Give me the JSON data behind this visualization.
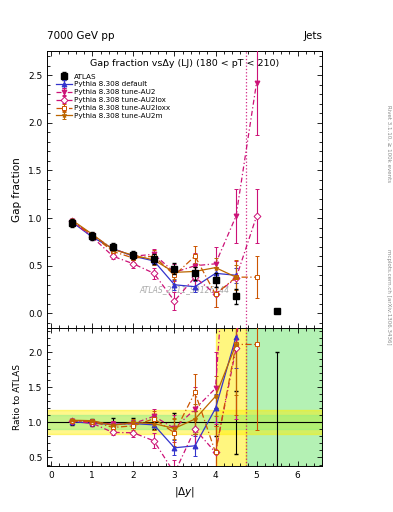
{
  "title_top": "7000 GeV pp",
  "title_top_right": "Jets",
  "main_title": "Gap fraction vsΔy (LJ) (180 < pT < 210)",
  "watermark": "ATLAS_2011_S9126244",
  "right_label": "Rivet 3.1.10, ≥ 100k events",
  "right_label2": "mcplots.cern.ch [arXiv:1306.3436]",
  "ylabel_main": "Gap fraction",
  "ylabel_ratio": "Ratio to ATLAS",
  "xlabel": "|$\\Delta y$|",
  "ylim_main": [
    -0.15,
    2.75
  ],
  "ylim_ratio": [
    0.38,
    2.35
  ],
  "yticks_main": [
    0.0,
    0.5,
    1.0,
    1.5,
    2.0,
    2.5
  ],
  "yticks_ratio": [
    0.5,
    1.0,
    1.5,
    2.0
  ],
  "xlim": [
    -0.1,
    6.6
  ],
  "xticks": [
    0,
    1,
    2,
    3,
    4,
    5,
    6
  ],
  "atlas_x": [
    0.5,
    1.0,
    1.5,
    2.0,
    2.5,
    3.0,
    3.5,
    4.0,
    4.5,
    5.5
  ],
  "atlas_y": [
    0.95,
    0.81,
    0.7,
    0.61,
    0.57,
    0.47,
    0.42,
    0.35,
    0.18,
    0.02
  ],
  "atlas_yerr_lo": [
    0.04,
    0.04,
    0.04,
    0.04,
    0.05,
    0.06,
    0.07,
    0.07,
    0.08,
    0.02
  ],
  "atlas_yerr_hi": [
    0.04,
    0.04,
    0.04,
    0.04,
    0.05,
    0.06,
    0.07,
    0.07,
    0.08,
    0.02
  ],
  "default_x": [
    0.5,
    1.0,
    1.5,
    2.0,
    2.5,
    3.0,
    3.5,
    4.0,
    4.5
  ],
  "default_y": [
    0.96,
    0.8,
    0.68,
    0.6,
    0.55,
    0.3,
    0.28,
    0.42,
    0.4
  ],
  "default_yerr": [
    0.01,
    0.02,
    0.02,
    0.03,
    0.04,
    0.05,
    0.06,
    0.07,
    0.08
  ],
  "default_color": "#3333cc",
  "au2_x": [
    0.5,
    1.0,
    1.5,
    2.0,
    2.5,
    3.0,
    3.5,
    4.0,
    4.5,
    5.0
  ],
  "au2_y": [
    0.97,
    0.82,
    0.68,
    0.6,
    0.62,
    0.43,
    0.5,
    0.52,
    1.02,
    2.42
  ],
  "au2_yerr": [
    0.01,
    0.02,
    0.03,
    0.03,
    0.06,
    0.09,
    0.13,
    0.18,
    0.28,
    0.55
  ],
  "au2_color": "#cc1177",
  "au2lox_x": [
    0.5,
    1.0,
    1.5,
    2.0,
    2.5,
    3.0,
    3.5,
    4.0,
    4.5,
    5.0
  ],
  "au2lox_y": [
    0.97,
    0.8,
    0.6,
    0.52,
    0.42,
    0.13,
    0.38,
    0.2,
    0.37,
    1.02
  ],
  "au2lox_yerr": [
    0.01,
    0.02,
    0.03,
    0.04,
    0.06,
    0.09,
    0.11,
    0.13,
    0.18,
    0.28
  ],
  "au2lox_color": "#cc1177",
  "au2loxx_x": [
    0.5,
    1.0,
    1.5,
    2.0,
    2.5,
    3.0,
    3.5,
    4.0,
    4.5,
    5.0
  ],
  "au2loxx_y": [
    0.97,
    0.82,
    0.65,
    0.58,
    0.6,
    0.4,
    0.6,
    0.2,
    0.38,
    0.38
  ],
  "au2loxx_yerr": [
    0.01,
    0.02,
    0.03,
    0.04,
    0.06,
    0.09,
    0.11,
    0.13,
    0.18,
    0.22
  ],
  "au2loxx_color": "#cc5500",
  "au2m_x": [
    0.5,
    1.0,
    1.5,
    2.0,
    2.5,
    3.0,
    3.5,
    4.0,
    4.5
  ],
  "au2m_y": [
    0.98,
    0.83,
    0.67,
    0.61,
    0.56,
    0.43,
    0.44,
    0.48,
    0.38
  ],
  "au2m_yerr": [
    0.01,
    0.02,
    0.03,
    0.03,
    0.05,
    0.07,
    0.09,
    0.1,
    0.13
  ],
  "au2m_color": "#bb6600",
  "vline_x": 4.75,
  "band_xmin_green": 4.75,
  "band_xmax": 6.6,
  "band_xmin_yellow": 4.0
}
